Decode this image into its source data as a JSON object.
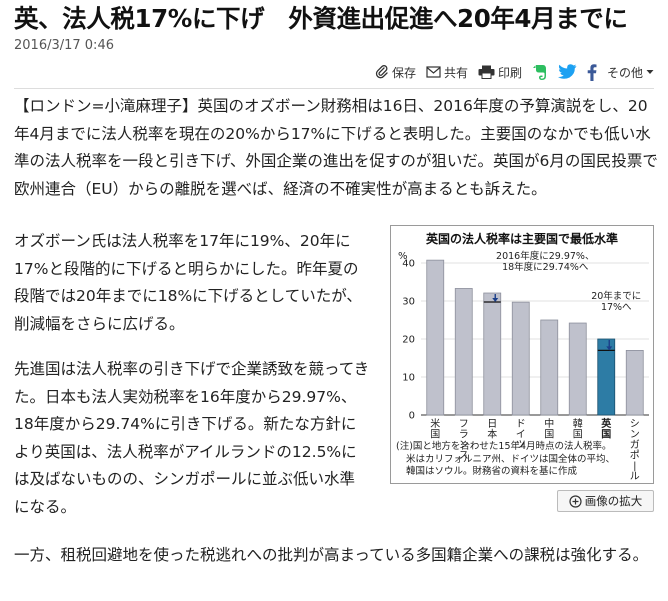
{
  "article": {
    "headline": "英、法人税17%に下げ　外資進出促進へ20年4月までに",
    "date": "2016/3/17 0:46",
    "paragraphs": [
      "【ロンドン=小滝麻理子】英国のオズボーン財務相は16日、2016年度の予算演説をし、20年4月までに法人税率を現在の20%から17%に下げると表明した。主要国のなかでも低い水準の法人税率を一段と引き下げ、外国企業の進出を促すのが狙いだ。英国が6月の国民投票で欧州連合（EU）からの離脱を選べば、経済の不確実性が高まるとも訴えた。",
      "オズボーン氏は法人税率を17年に19%、20年に17%と段階的に下げると明らかにした。昨年夏の段階では20年までに18%に下げるとしていたが、削減幅をさらに広げる。",
      "先進国は法人税率の引き下げで企業誘致を競ってきた。日本も法人実効税率を16年度から29.97%、18年度から29.74%に引き下げる。新たな方針により英国は、法人税率がアイルランドの12.5%には及ばないものの、シンガポールに並ぶ低い水準になる。",
      "一方、租税回避地を使った税逃れへの批判が高まっている多国籍企業への課税は強化する。"
    ]
  },
  "share": {
    "save_label": "保存",
    "share_label": "共有",
    "print_label": "印刷",
    "more_label": "その他",
    "icons": [
      "clip-icon",
      "mail-icon",
      "printer-icon",
      "evernote-icon",
      "twitter-icon",
      "facebook-icon",
      "chevron-down-icon"
    ]
  },
  "chart_data": {
    "type": "bar",
    "title": "英国の法人税率は主要国で最低水準",
    "ylabel": "%",
    "ylim": [
      0,
      40
    ],
    "yticks": [
      0,
      10,
      20,
      30,
      40
    ],
    "categories": [
      "米国",
      "フランス",
      "日本",
      "ドイツ",
      "中国",
      "韓国",
      "英国",
      "シンガポール"
    ],
    "values": [
      40.75,
      33.3,
      32.1,
      29.7,
      25,
      24.2,
      20,
      17
    ],
    "highlight": "英国",
    "annotations": [
      {
        "category": "日本",
        "from": 32.1,
        "to": 29.74,
        "lines": [
          "2016年度に29.97%、",
          "18年度に29.74%へ"
        ]
      },
      {
        "category": "英国",
        "from": 20,
        "to": 17,
        "lines": [
          "20年までに",
          "17%へ"
        ]
      }
    ],
    "note_lines": [
      "(注)国と地方を合わせた15年4月時点の法人税率。",
      "米はカリフォルニア州、ドイツは国全体の平均、",
      "韓国はソウル。財務省の資料を基に作成"
    ],
    "colors": {
      "bar": "#bfc1cc",
      "bar_stroke": "#8c8f9c",
      "highlight": "#2d7ca5",
      "highlight_stroke": "#1a4f6c",
      "arrow": "#1b3f8a"
    }
  },
  "zoom": {
    "label": "画像の拡大"
  }
}
